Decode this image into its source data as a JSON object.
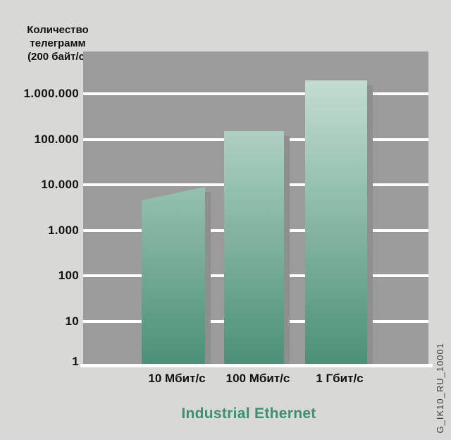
{
  "header": {
    "ylabel_lines": "Количество\nтелеграмм\n(200 байт/с)"
  },
  "footer": {
    "title": "Industrial Ethernet"
  },
  "stamp": "G_IK10_RU_10001",
  "chart_data": {
    "type": "bar",
    "title": "Industrial Ethernet",
    "ylabel": "Количество телеграмм (200 байт/с)",
    "yscale": "log",
    "ylim": [
      1,
      10000000
    ],
    "grid": true,
    "legend": "none",
    "categories": [
      "10 Мбит/с",
      "100 Мбит/с",
      "1 Гбит/с"
    ],
    "values": [
      9000,
      150000,
      2000000
    ],
    "bars": [
      {
        "category": "10 Мбит/с",
        "value": 9000,
        "value_top_left": 4500,
        "note": "slanted top edge rising left-to-right"
      },
      {
        "category": "100 Мбит/с",
        "value": 150000
      },
      {
        "category": "1 Гбит/с",
        "value": 2000000
      }
    ],
    "yticks": [
      {
        "label": "1.000.000",
        "value": 1000000
      },
      {
        "label": "100.000",
        "value": 100000
      },
      {
        "label": "10.000",
        "value": 10000
      },
      {
        "label": "1.000",
        "value": 1000
      },
      {
        "label": "100",
        "value": 100
      },
      {
        "label": "10",
        "value": 10
      },
      {
        "label": "1",
        "value": 1
      }
    ],
    "colors": {
      "page_background": "#d8d8d4",
      "plot_background": "#9b9b9b",
      "gridline": "#ffffff",
      "bar_gradient_top": "#cfe5da",
      "bar_gradient_bottom": "#4b9177",
      "bar_shadow": "#8f8f8f",
      "accent_text": "#3e8f75",
      "label_text": "#111111"
    }
  }
}
